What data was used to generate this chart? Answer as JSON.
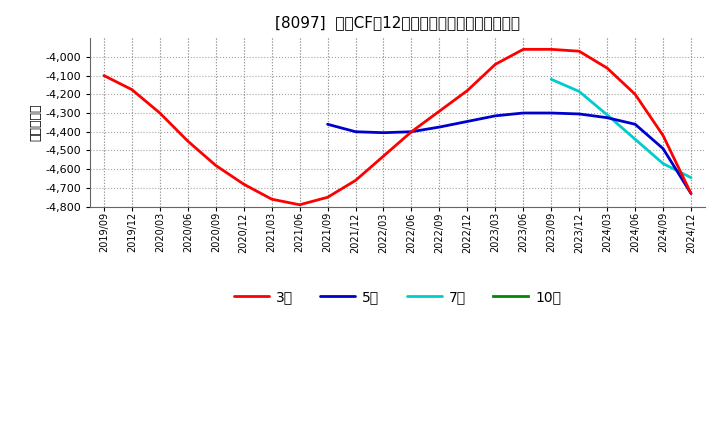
{
  "title": "[8097]  投賄CFだ12か月移動合計の平均値の推移",
  "ylabel": "（百万円）",
  "ylim": [
    -4800,
    -3900
  ],
  "yticks": [
    -4800,
    -4700,
    -4600,
    -4500,
    -4400,
    -4300,
    -4200,
    -4100,
    -4000
  ],
  "bg_color": "#ffffff",
  "plot_bg_color": "#ffffff",
  "grid_color": "#999999",
  "line_colors": {
    "3y": "#ff0000",
    "5y": "#0000cc",
    "7y": "#00cccc",
    "10y": "#008800"
  },
  "legend_labels": [
    "3年",
    "5年",
    "7年",
    "10年"
  ],
  "x_labels": [
    "2019/09",
    "2019/12",
    "2020/03",
    "2020/06",
    "2020/09",
    "2020/12",
    "2021/03",
    "2021/06",
    "2021/09",
    "2021/12",
    "2022/03",
    "2022/06",
    "2022/09",
    "2022/12",
    "2023/03",
    "2023/06",
    "2023/09",
    "2023/12",
    "2024/03",
    "2024/06",
    "2024/09",
    "2024/12"
  ],
  "series_3y": {
    "x": [
      0,
      1,
      2,
      3,
      4,
      5,
      6,
      7,
      8,
      9,
      10,
      11,
      12,
      13,
      14,
      15,
      16,
      17,
      18,
      19,
      20,
      21
    ],
    "y": [
      -4100,
      -4175,
      -4300,
      -4450,
      -4580,
      -4680,
      -4760,
      -4790,
      -4750,
      -4660,
      -4530,
      -4400,
      -4290,
      -4180,
      -4040,
      -3960,
      -3960,
      -3970,
      -4060,
      -4200,
      -4420,
      -4730
    ]
  },
  "series_5y": {
    "x": [
      8,
      9,
      10,
      11,
      12,
      13,
      14,
      15,
      16,
      17,
      18,
      19,
      20,
      21
    ],
    "y": [
      -4360,
      -4400,
      -4405,
      -4400,
      -4375,
      -4345,
      -4315,
      -4300,
      -4300,
      -4305,
      -4325,
      -4360,
      -4490,
      -4730
    ]
  },
  "series_7y": {
    "x": [
      16,
      17,
      18,
      19,
      20,
      21
    ],
    "y": [
      -4120,
      -4185,
      -4310,
      -4440,
      -4570,
      -4645
    ]
  },
  "series_10y": {
    "x": [],
    "y": []
  }
}
